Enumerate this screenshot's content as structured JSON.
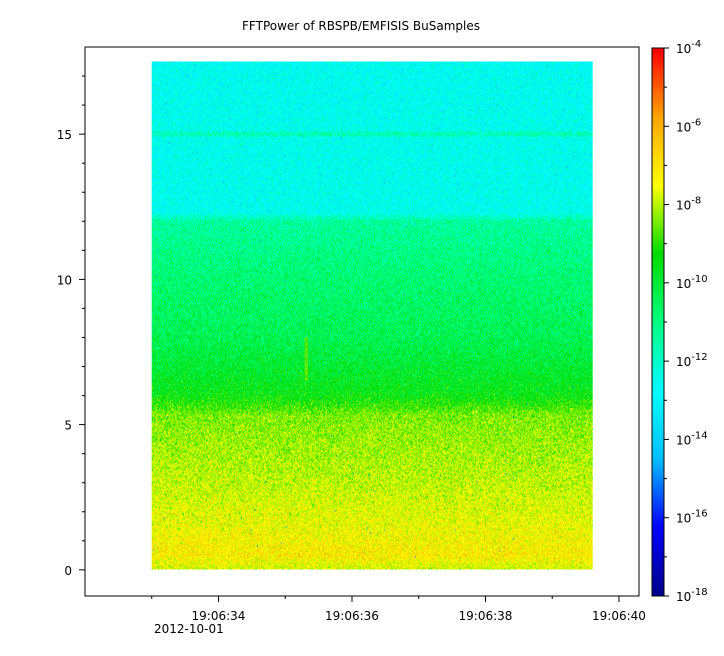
{
  "chart_data": {
    "type": "heatmap",
    "title": "FFTPower of RBSPB/EMFISIS  BuSamples",
    "x_axis": {
      "range": [
        "19:06:32.0",
        "19:06:40.3"
      ],
      "ticks": [
        "19:06:34",
        "19:06:36",
        "19:06:38",
        "19:06:40"
      ],
      "tick_seconds": [
        34,
        36,
        38,
        40
      ],
      "date_label": "2012-10-01"
    },
    "y_axis": {
      "range": [
        -0.9,
        18.0
      ],
      "ticks": [
        "0",
        "5",
        "10",
        "15"
      ],
      "tick_values": [
        0,
        5,
        10,
        15
      ]
    },
    "data_extent": {
      "x_start": "19:06:33.0",
      "x_end": "19:06:39.6",
      "y_min": 0,
      "y_max": 17.5
    },
    "colorbar": {
      "scale": "log",
      "range": [
        1e-18,
        0.0001
      ],
      "exponents": [
        -18,
        -16,
        -14,
        -12,
        -10,
        -8,
        -6,
        -4
      ],
      "tick_base": "10",
      "tick_labels": [
        "10-18",
        "10-16",
        "10-14",
        "10-12",
        "10-10",
        "10-8",
        "10-6",
        "10-4"
      ],
      "colormap": [
        "#00008b",
        "#0000ff",
        "#00bfff",
        "#00ffff",
        "#00ff80",
        "#00dd00",
        "#ffff00",
        "#ffa500",
        "#ff0000"
      ]
    },
    "power_profile_log10": [
      {
        "y": 0.0,
        "value": -7.8
      },
      {
        "y": 0.5,
        "value": -7.1
      },
      {
        "y": 1.5,
        "value": -7.5
      },
      {
        "y": 3.0,
        "value": -7.9
      },
      {
        "y": 5.3,
        "value": -8.4
      },
      {
        "y": 6.0,
        "value": -9.5
      },
      {
        "y": 8.0,
        "value": -10.4
      },
      {
        "y": 10.0,
        "value": -10.8
      },
      {
        "y": 12.0,
        "value": -11.4
      },
      {
        "y": 12.3,
        "value": -12.6
      },
      {
        "y": 15.0,
        "value": -12.6
      },
      {
        "y": 17.5,
        "value": -12.7
      }
    ],
    "features": [
      {
        "type": "horizontal_line",
        "y": 15.0,
        "value": -11.8
      },
      {
        "type": "vertical_streak",
        "x": "19:06:35.3",
        "y_range": [
          6.5,
          8.0
        ],
        "value": -8.6
      }
    ],
    "grid": false,
    "legend": "colorbar-right"
  }
}
